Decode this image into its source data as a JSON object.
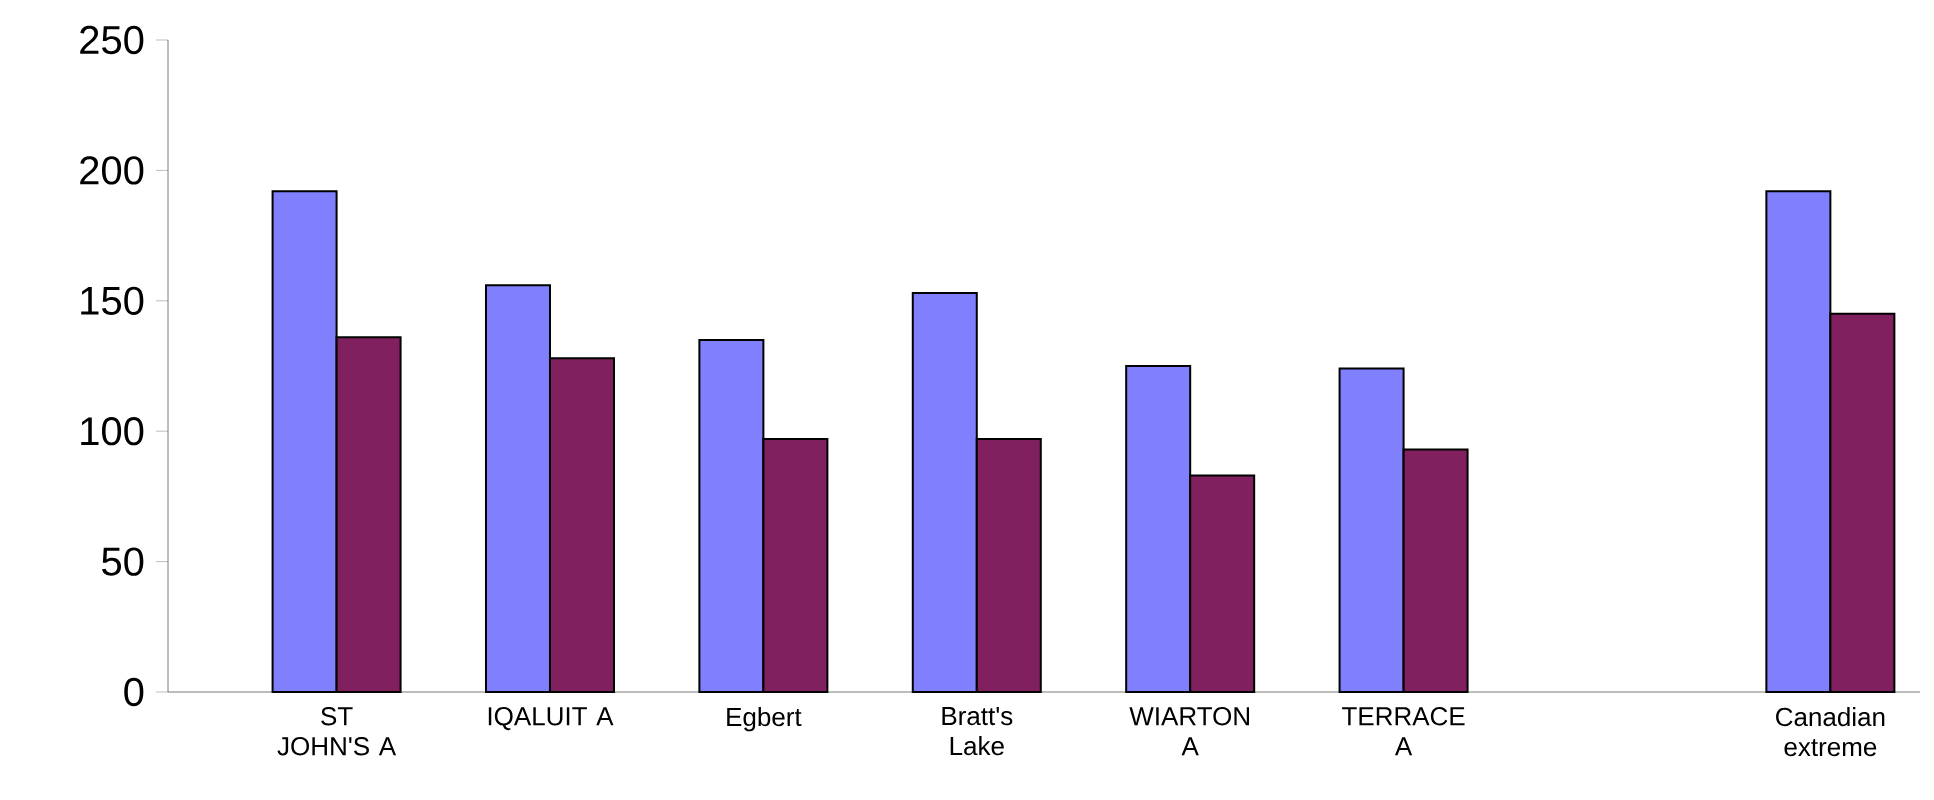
{
  "chart_data": {
    "type": "bar",
    "categories": [
      "ST JOHN'S A",
      "IQALUIT A",
      "Egbert",
      "Bratt's Lake",
      "WIARTON A",
      "TERRACE A",
      null,
      "Canadian extreme"
    ],
    "series": [
      {
        "color": "#8080ff",
        "values": [
          192,
          156,
          135,
          153,
          125,
          124,
          null,
          192
        ]
      },
      {
        "color": "#80205f",
        "values": [
          136,
          128,
          97,
          97,
          83,
          93,
          null,
          145
        ]
      }
    ],
    "ylim": [
      0,
      250
    ],
    "yticks": [
      0,
      50,
      100,
      150,
      200,
      250
    ],
    "grid": false
  }
}
